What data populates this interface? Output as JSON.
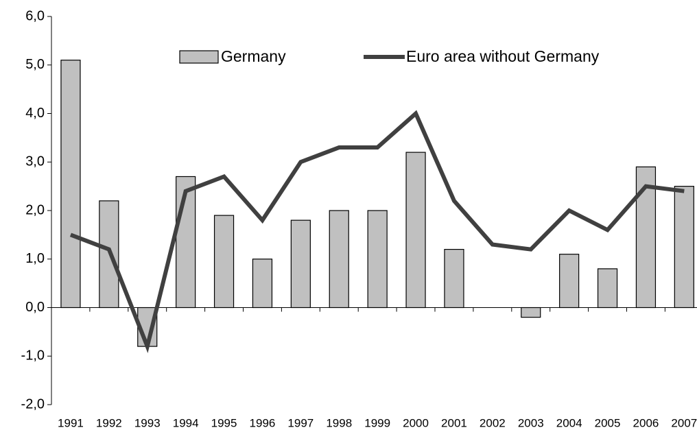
{
  "chart_data": {
    "type": "bar",
    "categories": [
      "1991",
      "1992",
      "1993",
      "1994",
      "1995",
      "1996",
      "1997",
      "1998",
      "1999",
      "2000",
      "2001",
      "2002",
      "2003",
      "2004",
      "2005",
      "2006",
      "2007"
    ],
    "series": [
      {
        "name": "Germany",
        "type": "bar",
        "color": "#c0c0c0",
        "values": [
          5.1,
          2.2,
          -0.8,
          2.7,
          1.9,
          1.0,
          1.8,
          2.0,
          2.0,
          3.2,
          1.2,
          0.0,
          -0.2,
          1.1,
          0.8,
          2.9,
          2.5
        ]
      },
      {
        "name": "Euro area without Germany",
        "type": "line",
        "color": "#404040",
        "values": [
          1.5,
          1.2,
          -0.8,
          2.4,
          2.7,
          1.8,
          3.0,
          3.3,
          3.3,
          4.0,
          2.2,
          1.3,
          1.2,
          2.0,
          1.6,
          2.5,
          2.4
        ]
      }
    ],
    "ylim": [
      -2,
      6
    ],
    "yticks": [
      {
        "value": -2,
        "label": "-2,0"
      },
      {
        "value": -1,
        "label": "-1,0"
      },
      {
        "value": 0,
        "label": "0,0"
      },
      {
        "value": 1,
        "label": "1,0"
      },
      {
        "value": 2,
        "label": "2,0"
      },
      {
        "value": 3,
        "label": "3,0"
      },
      {
        "value": 4,
        "label": "4,0"
      },
      {
        "value": 5,
        "label": "5,0"
      },
      {
        "value": 6,
        "label": "6,0"
      }
    ],
    "grid": false,
    "legend": "top"
  }
}
